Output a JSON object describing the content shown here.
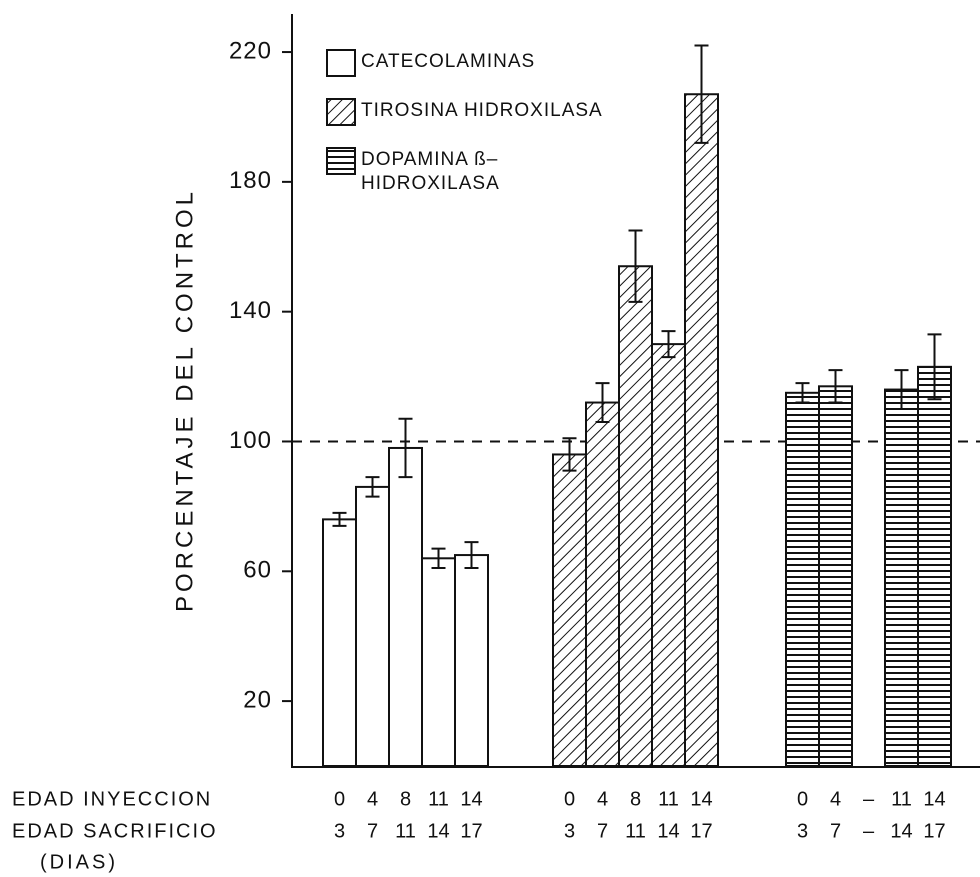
{
  "chart_data": {
    "type": "bar",
    "ylabel": "PORCENTAJE DEL CONTROL",
    "ylim": [
      0,
      230
    ],
    "yticks": [
      20,
      60,
      100,
      140,
      180,
      220
    ],
    "reference_line": 100,
    "row_labels": [
      "EDAD INYECCION",
      "EDAD SACRIFICIO"
    ],
    "unit_label": "(DIAS)",
    "series": [
      {
        "name": "CATECOLAMINAS",
        "pattern": "open",
        "injection_age": [
          "0",
          "4",
          "8",
          "11",
          "14"
        ],
        "sacrifice_age": [
          "3",
          "7",
          "11",
          "14",
          "17"
        ],
        "values": [
          76,
          86,
          98,
          64,
          65
        ],
        "errors": [
          2,
          3,
          9,
          3,
          4
        ]
      },
      {
        "name": "TIROSINA HIDROXILASA",
        "pattern": "diagonal",
        "injection_age": [
          "0",
          "4",
          "8",
          "11",
          "14"
        ],
        "sacrifice_age": [
          "3",
          "7",
          "11",
          "14",
          "17"
        ],
        "values": [
          96,
          112,
          154,
          130,
          207
        ],
        "errors": [
          5,
          6,
          11,
          4,
          15
        ]
      },
      {
        "name": "DOPAMINA ß–\nHIDROXILASA",
        "pattern": "horizontal",
        "injection_age": [
          "0",
          "4",
          "–",
          "11",
          "14"
        ],
        "sacrifice_age": [
          "3",
          "7",
          "–",
          "14",
          "17"
        ],
        "values": [
          115,
          117,
          null,
          116,
          123
        ],
        "errors": [
          3,
          5,
          null,
          6,
          10
        ]
      }
    ]
  }
}
